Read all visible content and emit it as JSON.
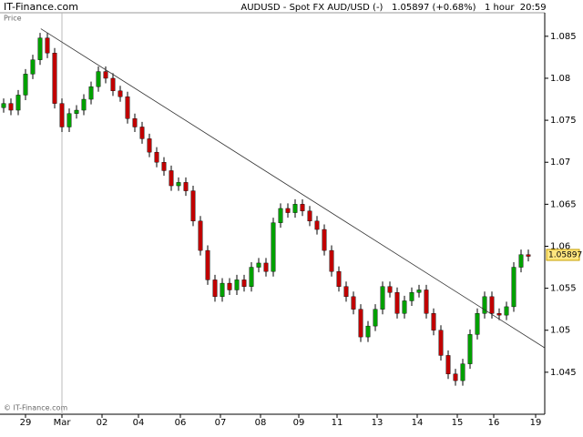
{
  "chart_data": {
    "type": "candlestick",
    "source": "IT-Finance.com",
    "title": "AUDUSD - Spot FX AUD/USD (-)   1.05897 (+0.68%)   1 hour  20:59",
    "y_label": "Price",
    "footer": "© IT-Finance.com",
    "last_price": 1.05897,
    "up_color": "#00a000",
    "down_color": "#c00000",
    "open": [
      1.0765,
      1.077,
      1.0762,
      1.078,
      1.0805,
      1.0822,
      1.0848,
      1.083,
      1.077,
      1.0742,
      1.0758,
      1.0762,
      1.0775,
      1.079,
      1.0808,
      1.08,
      1.0785,
      1.0778,
      1.0752,
      1.0742,
      1.0728,
      1.0712,
      1.07,
      1.069,
      1.0672,
      1.0676,
      1.0666,
      1.063,
      1.0595,
      1.056,
      1.054,
      1.0556,
      1.0548,
      1.056,
      1.0552,
      1.0575,
      1.058,
      1.057,
      1.0628,
      1.0645,
      1.064,
      1.065,
      1.0642,
      1.063,
      1.062,
      1.0595,
      1.057,
      1.0552,
      1.054,
      1.0525,
      1.0492,
      1.0505,
      1.0525,
      1.0552,
      1.0545,
      1.052,
      1.0535,
      1.0545,
      1.0548,
      1.052,
      1.05,
      1.047,
      1.0448,
      1.044,
      1.046,
      1.0495,
      1.052,
      1.054,
      1.052,
      1.0518,
      1.0528,
      1.0575,
      1.059
    ],
    "high": [
      1.0776,
      1.0776,
      1.0786,
      1.0811,
      1.0828,
      1.0854,
      1.0854,
      1.0836,
      1.0776,
      1.0764,
      1.0768,
      1.0781,
      1.0796,
      1.0814,
      1.0814,
      1.0806,
      1.0791,
      1.0784,
      1.0758,
      1.0748,
      1.0734,
      1.0718,
      1.0706,
      1.0696,
      1.0682,
      1.0682,
      1.0672,
      1.0636,
      1.0601,
      1.0566,
      1.0562,
      1.0562,
      1.0566,
      1.0566,
      1.0581,
      1.0586,
      1.0586,
      1.0634,
      1.0651,
      1.0651,
      1.0656,
      1.0656,
      1.0648,
      1.0636,
      1.0626,
      1.0601,
      1.0576,
      1.0558,
      1.0546,
      1.0531,
      1.0511,
      1.0531,
      1.0558,
      1.0558,
      1.0551,
      1.0541,
      1.0551,
      1.0554,
      1.0554,
      1.0526,
      1.0506,
      1.0476,
      1.0454,
      1.0466,
      1.0501,
      1.0526,
      1.0546,
      1.0546,
      1.0526,
      1.0534,
      1.0581,
      1.0596,
      1.0596
    ],
    "low": [
      1.0759,
      1.0756,
      1.0756,
      1.0774,
      1.0799,
      1.0816,
      1.0824,
      1.0764,
      1.0736,
      1.0736,
      1.0752,
      1.0756,
      1.0769,
      1.0784,
      1.0794,
      1.0779,
      1.0772,
      1.0746,
      1.0736,
      1.0722,
      1.0706,
      1.0694,
      1.0684,
      1.0666,
      1.0666,
      1.066,
      1.0624,
      1.0589,
      1.0554,
      1.0534,
      1.0534,
      1.0542,
      1.0542,
      1.0546,
      1.0546,
      1.0569,
      1.0564,
      1.0564,
      1.0622,
      1.0634,
      1.0634,
      1.0636,
      1.0624,
      1.0614,
      1.0589,
      1.0564,
      1.0546,
      1.0534,
      1.0519,
      1.0486,
      1.0486,
      1.0499,
      1.0519,
      1.0539,
      1.0514,
      1.0514,
      1.0529,
      1.0539,
      1.0514,
      1.0494,
      1.0464,
      1.0442,
      1.0434,
      1.0434,
      1.0454,
      1.0489,
      1.0514,
      1.0514,
      1.0512,
      1.0512,
      1.0522,
      1.0569,
      1.0582
    ],
    "close": [
      1.077,
      1.0762,
      1.078,
      1.0805,
      1.0822,
      1.0848,
      1.083,
      1.077,
      1.0742,
      1.0758,
      1.0762,
      1.0775,
      1.079,
      1.0808,
      1.08,
      1.0785,
      1.0778,
      1.0752,
      1.0742,
      1.0728,
      1.0712,
      1.07,
      1.069,
      1.0672,
      1.0676,
      1.0666,
      1.063,
      1.0595,
      1.056,
      1.054,
      1.0556,
      1.0548,
      1.056,
      1.0552,
      1.0575,
      1.058,
      1.057,
      1.0628,
      1.0645,
      1.064,
      1.065,
      1.0642,
      1.063,
      1.062,
      1.0595,
      1.057,
      1.0552,
      1.054,
      1.0525,
      1.0492,
      1.0505,
      1.0525,
      1.0552,
      1.0545,
      1.052,
      1.0535,
      1.0545,
      1.0548,
      1.052,
      1.05,
      1.047,
      1.0448,
      1.044,
      1.046,
      1.0495,
      1.052,
      1.054,
      1.052,
      1.0518,
      1.0528,
      1.0575,
      1.059,
      1.0588
    ],
    "trendline": {
      "x": [
        5.1,
        74.25
      ],
      "y": [
        1.0859,
        1.0479
      ]
    },
    "xlim": [
      -0.5,
      74.25
    ],
    "xticks": [
      {
        "value": 3,
        "label": "29"
      },
      {
        "value": 8,
        "label": "Mar"
      },
      {
        "value": 13.5,
        "label": "02"
      },
      {
        "value": 18.5,
        "label": "04"
      },
      {
        "value": 24.25,
        "label": "06"
      },
      {
        "value": 29.75,
        "label": "07"
      },
      {
        "value": 35.25,
        "label": "08"
      },
      {
        "value": 40.5,
        "label": "09"
      },
      {
        "value": 45.75,
        "label": "11"
      },
      {
        "value": 51.25,
        "label": "13"
      },
      {
        "value": 56.75,
        "label": "14"
      },
      {
        "value": 62.25,
        "label": "15"
      },
      {
        "value": 67.25,
        "label": "16"
      },
      {
        "value": 73,
        "label": "19"
      }
    ],
    "month_separator": 1,
    "ylim": [
      1.04,
      1.0878
    ],
    "yticks": [
      1.045,
      1.05,
      1.055,
      1.06,
      1.065,
      1.07,
      1.075,
      1.08,
      1.085
    ]
  }
}
